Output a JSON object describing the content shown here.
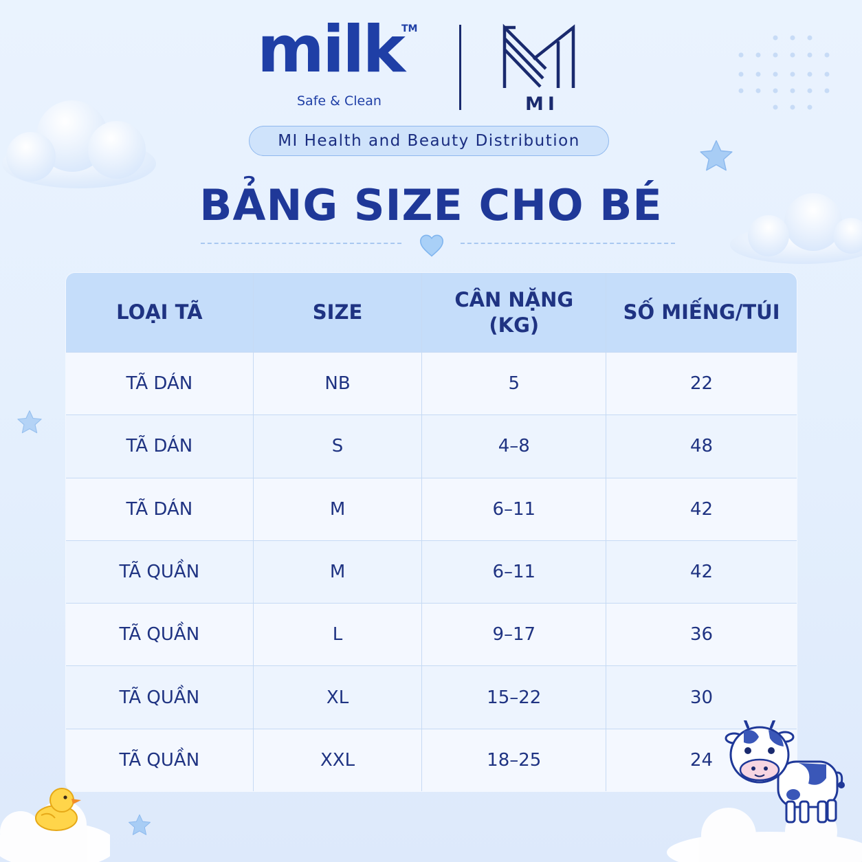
{
  "brand": {
    "milk_word": "milk",
    "milk_trademark": "TM",
    "milk_tagline": "Safe & Clean",
    "mi_mark": "MI",
    "distributor": "MI Health and Beauty Distribution"
  },
  "title": "BẢNG SIZE CHO BÉ",
  "table": {
    "headers": {
      "type": "LOẠI TÃ",
      "size": "SIZE",
      "weight_line1": "CÂN NẶNG",
      "weight_line2": "(KG)",
      "count": "SỐ MIẾNG/TÚI"
    },
    "rows": [
      {
        "type": "TÃ DÁN",
        "size": "NB",
        "weight": "5",
        "count": "22"
      },
      {
        "type": "TÃ DÁN",
        "size": "S",
        "weight": "4–8",
        "count": "48"
      },
      {
        "type": "TÃ DÁN",
        "size": "M",
        "weight": "6–11",
        "count": "42"
      },
      {
        "type": "TÃ QUẦN",
        "size": "M",
        "weight": "6–11",
        "count": "42"
      },
      {
        "type": "TÃ QUẦN",
        "size": "L",
        "weight": "9–17",
        "count": "36"
      },
      {
        "type": "TÃ QUẦN",
        "size": "XL",
        "weight": "15–22",
        "count": "30"
      },
      {
        "type": "TÃ QUẦN",
        "size": "XXL",
        "weight": "18–25",
        "count": "24"
      }
    ]
  },
  "colors": {
    "primary": "#1f3898",
    "header_bg": "#c5ddfa",
    "background": "#eaf3fe"
  }
}
